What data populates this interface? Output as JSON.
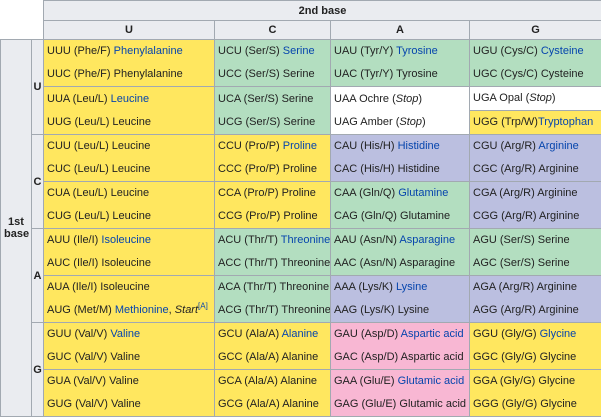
{
  "header": {
    "second_base": "2nd base",
    "first_base_line1": "1st",
    "first_base_line2": "base",
    "columns": [
      "U",
      "C",
      "A",
      "G"
    ]
  },
  "row_labels": [
    "U",
    "C",
    "A",
    "G"
  ],
  "colors": {
    "nonpolar": "#ffe75f",
    "polar": "#b3dec0",
    "basic": "#bbbfe0",
    "acidic": "#f8b7d3",
    "stop": "#ffffff",
    "header": "#eaecf0",
    "link": "#0645ad"
  },
  "rows": [
    {
      "cells": [
        {
          "class": "nonpolar",
          "lines": [
            {
              "code": "UUU (Phe/F) ",
              "name": "Phenylalanine",
              "link": true
            },
            {
              "code": "UUC (Phe/F) ",
              "name": "Phenylalanine",
              "link": false
            }
          ]
        },
        {
          "class": "polar",
          "lines": [
            {
              "code": "UCU (Ser/S) ",
              "name": "Serine",
              "link": true
            },
            {
              "code": "UCC (Ser/S) ",
              "name": "Serine",
              "link": false
            }
          ]
        },
        {
          "class": "polar",
          "lines": [
            {
              "code": "UAU (Tyr/Y) ",
              "name": "Tyrosine",
              "link": true
            },
            {
              "code": "UAC (Tyr/Y) ",
              "name": "Tyrosine",
              "link": false
            }
          ]
        },
        {
          "class": "polar",
          "lines": [
            {
              "code": "UGU (Cys/C) ",
              "name": "Cysteine",
              "link": true
            },
            {
              "code": "UGC (Cys/C) ",
              "name": "Cysteine",
              "link": false
            }
          ]
        }
      ]
    },
    {
      "cells": [
        {
          "class": "nonpolar",
          "lines": [
            {
              "code": "UUA (Leu/L) ",
              "name": "Leucine",
              "link": true
            },
            {
              "code": "UUG (Leu/L) ",
              "name": "Leucine",
              "link": false
            }
          ]
        },
        {
          "class": "polar",
          "lines": [
            {
              "code": "UCA (Ser/S) ",
              "name": "Serine",
              "link": false
            },
            {
              "code": "UCG (Ser/S) ",
              "name": "Serine",
              "link": false
            }
          ]
        },
        {
          "class": "stop",
          "lines": [
            {
              "code": "UAA Ochre (",
              "name": "",
              "stop": "Stop",
              "tail": ")"
            },
            {
              "code": "UAG Amber (",
              "name": "",
              "stop": "Stop",
              "tail": ")"
            }
          ]
        },
        {
          "class": "split",
          "lines": [
            {
              "code": "UGA Opal (",
              "name": "",
              "stop": "Stop",
              "tail": ")",
              "cls": "stop"
            },
            {
              "code": "UGG (Trp/W) ",
              "name": "Tryptophan",
              "link": true,
              "cls": "nonpolar"
            }
          ]
        }
      ]
    },
    {
      "cells": [
        {
          "class": "nonpolar",
          "lines": [
            {
              "code": "CUU (Leu/L) ",
              "name": "Leucine",
              "link": false
            },
            {
              "code": "CUC (Leu/L) ",
              "name": "Leucine",
              "link": false
            }
          ]
        },
        {
          "class": "nonpolar",
          "lines": [
            {
              "code": "CCU (Pro/P) ",
              "name": "Proline",
              "link": true
            },
            {
              "code": "CCC (Pro/P) ",
              "name": "Proline",
              "link": false
            }
          ]
        },
        {
          "class": "basic",
          "lines": [
            {
              "code": "CAU (His/H) ",
              "name": "Histidine",
              "link": true
            },
            {
              "code": "CAC (His/H) ",
              "name": "Histidine",
              "link": false
            }
          ]
        },
        {
          "class": "basic",
          "lines": [
            {
              "code": "CGU (Arg/R) ",
              "name": "Arginine",
              "link": true
            },
            {
              "code": "CGC (Arg/R) ",
              "name": "Arginine",
              "link": false
            }
          ]
        }
      ]
    },
    {
      "cells": [
        {
          "class": "nonpolar",
          "lines": [
            {
              "code": "CUA (Leu/L) ",
              "name": "Leucine",
              "link": false
            },
            {
              "code": "CUG (Leu/L) ",
              "name": "Leucine",
              "link": false
            }
          ]
        },
        {
          "class": "nonpolar",
          "lines": [
            {
              "code": "CCA (Pro/P) ",
              "name": "Proline",
              "link": false
            },
            {
              "code": "CCG (Pro/P) ",
              "name": "Proline",
              "link": false
            }
          ]
        },
        {
          "class": "polar",
          "lines": [
            {
              "code": "CAA (Gln/Q) ",
              "name": "Glutamine",
              "link": true
            },
            {
              "code": "CAG (Gln/Q) ",
              "name": "Glutamine",
              "link": false
            }
          ]
        },
        {
          "class": "basic",
          "lines": [
            {
              "code": "CGA (Arg/R) ",
              "name": "Arginine",
              "link": false
            },
            {
              "code": "CGG (Arg/R) ",
              "name": "Arginine",
              "link": false
            }
          ]
        }
      ]
    },
    {
      "cells": [
        {
          "class": "nonpolar",
          "lines": [
            {
              "code": "AUU (Ile/I) ",
              "name": "Isoleucine",
              "link": true
            },
            {
              "code": "AUC (Ile/I) ",
              "name": "Isoleucine",
              "link": false
            }
          ]
        },
        {
          "class": "polar",
          "lines": [
            {
              "code": "ACU (Thr/T) ",
              "name": "Threonine",
              "link": true
            },
            {
              "code": "ACC (Thr/T) ",
              "name": "Threonine",
              "link": false
            }
          ]
        },
        {
          "class": "polar",
          "lines": [
            {
              "code": "AAU (Asn/N) ",
              "name": "Asparagine",
              "link": true
            },
            {
              "code": "AAC (Asn/N) ",
              "name": "Asparagine",
              "link": false
            }
          ]
        },
        {
          "class": "polar",
          "lines": [
            {
              "code": "AGU (Ser/S) ",
              "name": "Serine",
              "link": false
            },
            {
              "code": "AGC (Ser/S) ",
              "name": "Serine",
              "link": false
            }
          ]
        }
      ]
    },
    {
      "cells": [
        {
          "class": "nonpolar",
          "lines": [
            {
              "code": "AUA (Ile/I) ",
              "name": "Isoleucine",
              "link": false
            },
            {
              "code": "AUG (Met/M) ",
              "name": "Methionine",
              "link": true,
              "extra": ", ",
              "start": "Start",
              "sup": "[A]"
            }
          ]
        },
        {
          "class": "polar",
          "lines": [
            {
              "code": "ACA (Thr/T) ",
              "name": "Threonine",
              "link": false
            },
            {
              "code": "ACG (Thr/T) ",
              "name": "Threonine",
              "link": false
            }
          ]
        },
        {
          "class": "basic",
          "lines": [
            {
              "code": "AAA (Lys/K) ",
              "name": "Lysine",
              "link": true
            },
            {
              "code": "AAG (Lys/K) ",
              "name": "Lysine",
              "link": false
            }
          ]
        },
        {
          "class": "basic",
          "lines": [
            {
              "code": "AGA (Arg/R) ",
              "name": "Arginine",
              "link": false
            },
            {
              "code": "AGG (Arg/R) ",
              "name": "Arginine",
              "link": false
            }
          ]
        }
      ]
    },
    {
      "cells": [
        {
          "class": "nonpolar",
          "lines": [
            {
              "code": "GUU (Val/V) ",
              "name": "Valine",
              "link": true
            },
            {
              "code": "GUC (Val/V) ",
              "name": "Valine",
              "link": false
            }
          ]
        },
        {
          "class": "nonpolar",
          "lines": [
            {
              "code": "GCU (Ala/A) ",
              "name": "Alanine",
              "link": true
            },
            {
              "code": "GCC (Ala/A) ",
              "name": "Alanine",
              "link": false
            }
          ]
        },
        {
          "class": "acidic",
          "lines": [
            {
              "code": "GAU (Asp/D) ",
              "name": "Aspartic acid",
              "link": true
            },
            {
              "code": "GAC (Asp/D) ",
              "name": "Aspartic acid",
              "link": false
            }
          ]
        },
        {
          "class": "nonpolar",
          "lines": [
            {
              "code": "GGU (Gly/G) ",
              "name": "Glycine",
              "link": true
            },
            {
              "code": "GGC (Gly/G) ",
              "name": "Glycine",
              "link": false
            }
          ]
        }
      ]
    },
    {
      "cells": [
        {
          "class": "nonpolar",
          "lines": [
            {
              "code": "GUA (Val/V) ",
              "name": "Valine",
              "link": false
            },
            {
              "code": "GUG (Val/V) ",
              "name": "Valine",
              "link": false
            }
          ]
        },
        {
          "class": "nonpolar",
          "lines": [
            {
              "code": "GCA (Ala/A) ",
              "name": "Alanine",
              "link": false
            },
            {
              "code": "GCG (Ala/A) ",
              "name": "Alanine",
              "link": false
            }
          ]
        },
        {
          "class": "acidic",
          "lines": [
            {
              "code": "GAA (Glu/E) ",
              "name": "Glutamic acid",
              "link": true
            },
            {
              "code": "GAG (Glu/E) ",
              "name": "Glutamic acid",
              "link": false
            }
          ]
        },
        {
          "class": "nonpolar",
          "lines": [
            {
              "code": "GGA (Gly/G) ",
              "name": "Glycine",
              "link": false
            },
            {
              "code": "GGG (Gly/G) ",
              "name": "Glycine",
              "link": false
            }
          ]
        }
      ]
    }
  ]
}
